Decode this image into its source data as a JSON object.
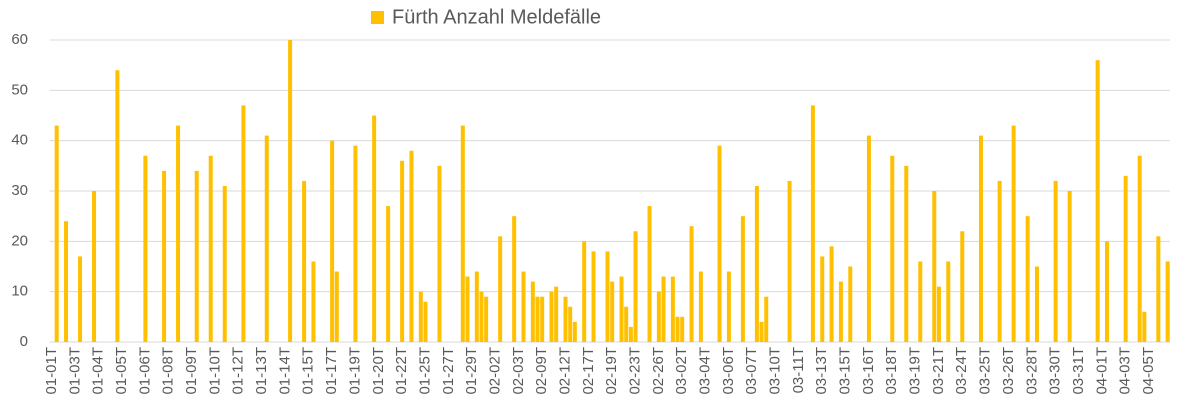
{
  "chart_data": {
    "type": "bar",
    "categories": [
      "01-01T",
      null,
      null,
      null,
      null,
      "01-03T",
      null,
      null,
      null,
      null,
      "01-04T",
      null,
      null,
      null,
      null,
      "01-05T",
      null,
      null,
      null,
      null,
      "01-06T",
      null,
      null,
      null,
      null,
      "01-08T",
      null,
      null,
      null,
      null,
      "01-09T",
      null,
      null,
      null,
      null,
      "01-10T",
      null,
      null,
      null,
      null,
      "01-12T",
      null,
      null,
      null,
      null,
      "01-13T",
      null,
      null,
      null,
      null,
      "01-14T",
      null,
      null,
      null,
      null,
      "01-15T",
      null,
      null,
      null,
      null,
      "01-17T",
      null,
      null,
      null,
      null,
      "01-19T",
      null,
      null,
      null,
      null,
      "01-20T",
      null,
      null,
      null,
      null,
      "01-22T",
      null,
      null,
      null,
      null,
      "01-25T",
      null,
      null,
      null,
      null,
      "01-27T",
      null,
      null,
      null,
      null,
      "01-29T",
      null,
      null,
      null,
      null,
      "02-02T",
      null,
      null,
      null,
      null,
      "02-03T",
      null,
      null,
      null,
      null,
      "02-09T",
      null,
      null,
      null,
      null,
      "02-12T",
      null,
      null,
      null,
      null,
      "02-17T",
      null,
      null,
      null,
      null,
      "02-19T",
      null,
      null,
      null,
      null,
      "02-23T",
      null,
      null,
      null,
      null,
      "02-26T",
      null,
      null,
      null,
      null,
      "03-02T",
      null,
      null,
      null,
      null,
      "03-04T",
      null,
      null,
      null,
      null,
      "03-06T",
      null,
      null,
      null,
      null,
      "03-07T",
      null,
      null,
      null,
      null,
      "03-10T",
      null,
      null,
      null,
      null,
      "03-11T",
      null,
      null,
      null,
      null,
      "03-13T",
      null,
      null,
      null,
      null,
      "03-15T",
      null,
      null,
      null,
      null,
      "03-16T",
      null,
      null,
      null,
      null,
      "03-18T",
      null,
      null,
      null,
      null,
      "03-19T",
      null,
      null,
      null,
      null,
      "03-21T",
      null,
      null,
      null,
      null,
      "03-24T",
      null,
      null,
      null,
      null,
      "03-25T",
      null,
      null,
      null,
      null,
      "03-26T",
      null,
      null,
      null,
      null,
      "03-28T",
      null,
      null,
      null,
      null,
      "03-30T",
      null,
      null,
      null,
      null,
      "03-31T",
      null,
      null,
      null,
      null,
      "04-01T",
      null,
      null,
      null,
      null,
      "04-03T",
      null,
      null,
      null,
      null,
      "04-05T",
      null,
      null,
      null,
      null
    ],
    "series": [
      {
        "name": "Fürth Anzahl Meldefälle",
        "color": "#ffc000",
        "values": [
          null,
          43,
          null,
          24,
          null,
          null,
          17,
          null,
          null,
          30,
          null,
          null,
          null,
          null,
          54,
          null,
          null,
          null,
          null,
          null,
          37,
          null,
          null,
          null,
          34,
          null,
          null,
          43,
          null,
          null,
          null,
          34,
          null,
          null,
          37,
          null,
          null,
          31,
          null,
          null,
          null,
          47,
          null,
          null,
          null,
          null,
          41,
          null,
          null,
          null,
          null,
          60,
          null,
          null,
          32,
          null,
          16,
          null,
          null,
          null,
          40,
          14,
          null,
          null,
          null,
          39,
          null,
          null,
          null,
          45,
          null,
          null,
          27,
          null,
          null,
          36,
          null,
          38,
          null,
          10,
          8,
          null,
          null,
          35,
          null,
          null,
          null,
          null,
          43,
          13,
          null,
          14,
          10,
          9,
          null,
          null,
          21,
          null,
          null,
          25,
          null,
          14,
          null,
          12,
          9,
          9,
          null,
          10,
          11,
          null,
          9,
          7,
          4,
          null,
          20,
          null,
          18,
          null,
          null,
          18,
          12,
          null,
          13,
          7,
          3,
          22,
          null,
          null,
          27,
          null,
          10,
          13,
          null,
          13,
          5,
          5,
          null,
          23,
          null,
          14,
          null,
          null,
          null,
          39,
          null,
          14,
          null,
          null,
          25,
          null,
          null,
          31,
          4,
          9,
          null,
          null,
          null,
          null,
          32,
          null,
          null,
          null,
          null,
          47,
          null,
          17,
          null,
          19,
          null,
          12,
          null,
          15,
          null,
          null,
          null,
          41,
          null,
          null,
          null,
          null,
          37,
          null,
          null,
          35,
          null,
          null,
          16,
          null,
          null,
          30,
          11,
          null,
          16,
          null,
          null,
          22,
          null,
          null,
          null,
          41,
          null,
          null,
          null,
          32,
          null,
          null,
          43,
          null,
          null,
          25,
          null,
          15,
          null,
          null,
          null,
          32,
          null,
          null,
          30,
          null,
          null,
          null,
          null,
          null,
          56,
          null,
          20,
          null,
          null,
          null,
          33,
          null,
          null,
          37,
          6,
          null,
          null,
          21,
          null,
          16
        ]
      }
    ],
    "ylim": [
      0,
      60
    ],
    "yticks": [
      0,
      10,
      20,
      30,
      40,
      50,
      60
    ],
    "grid": true,
    "legend": "top"
  }
}
